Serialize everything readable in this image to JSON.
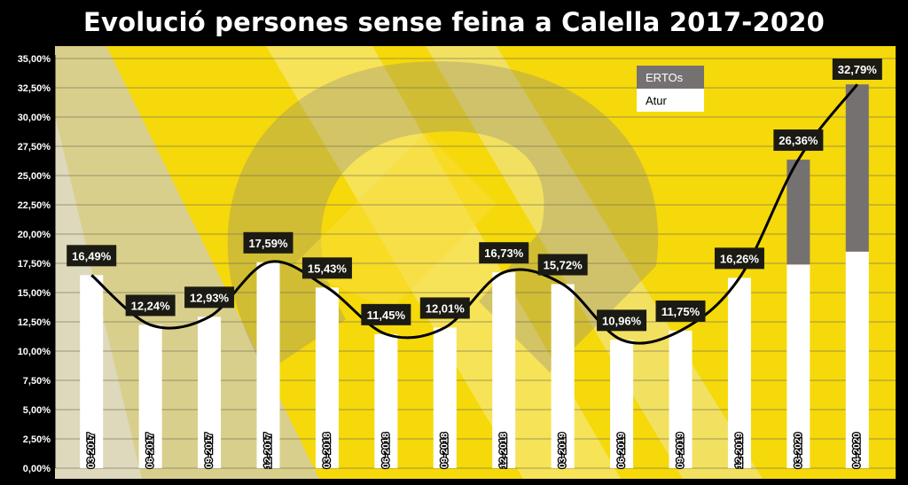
{
  "chart_data": {
    "type": "bar",
    "title": "Evolució persones sense feina a Calella 2017-2020",
    "categories": [
      "03-2017",
      "06-2017",
      "09-2017",
      "12-2017",
      "03-2018",
      "06-2018",
      "09-2018",
      "12-2018",
      "03-2019",
      "06-2019",
      "09-2019",
      "12-2019",
      "03-2020",
      "04-2020"
    ],
    "series": [
      {
        "name": "Atur",
        "color": "#ffffff",
        "values": [
          16.49,
          12.24,
          12.93,
          17.59,
          15.43,
          11.45,
          12.01,
          16.73,
          15.72,
          10.96,
          11.75,
          16.26,
          17.4,
          18.5
        ]
      },
      {
        "name": "ERTOs",
        "color": "#767171",
        "values": [
          0,
          0,
          0,
          0,
          0,
          0,
          0,
          0,
          0,
          0,
          0,
          0,
          8.96,
          14.29
        ]
      }
    ],
    "totals": [
      16.49,
      12.24,
      12.93,
      17.59,
      15.43,
      11.45,
      12.01,
      16.73,
      15.72,
      10.96,
      11.75,
      16.26,
      26.36,
      32.79
    ],
    "data_labels": [
      "16,49%",
      "12,24%",
      "12,93%",
      "17,59%",
      "15,43%",
      "11,45%",
      "12,01%",
      "16,73%",
      "15,72%",
      "10,96%",
      "11,75%",
      "16,26%",
      "26,36%",
      "32,79%"
    ],
    "y_ticks": [
      "0,00%",
      "2,50%",
      "5,00%",
      "7,50%",
      "10,00%",
      "12,50%",
      "15,00%",
      "17,50%",
      "20,00%",
      "22,50%",
      "25,00%",
      "27,50%",
      "30,00%",
      "32,50%",
      "35,00%"
    ],
    "ylim": [
      0,
      35
    ],
    "xlabel": "",
    "ylabel": "",
    "legend_position": "top-right",
    "grid": true,
    "trend_line": true,
    "colors": {
      "background": "#f5d90a",
      "frame": "#000000",
      "label_box": "#1b1b14",
      "trend": "#000000"
    }
  }
}
